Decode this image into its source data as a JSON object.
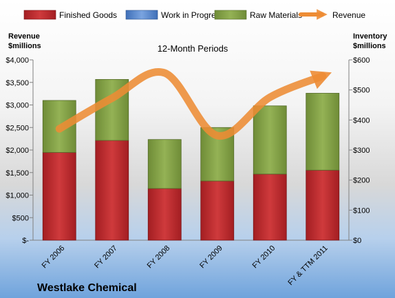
{
  "chart_data": {
    "type": "bar",
    "subtitle": "12-Month Periods",
    "company": "Westlake Chemical",
    "categories": [
      "FY 2006",
      "FY 2007",
      "FY 2008",
      "FY 2009",
      "FY 2010",
      "FY & TTM 2011"
    ],
    "left_axis": {
      "label_line1": "Revenue",
      "label_line2": "$millions",
      "ylim": [
        0,
        4000
      ],
      "ticks": [
        {
          "v": 0,
          "label": "$-"
        },
        {
          "v": 500,
          "label": "$500"
        },
        {
          "v": 1000,
          "label": "$1,000"
        },
        {
          "v": 1500,
          "label": "$1,500"
        },
        {
          "v": 2000,
          "label": "$2,000"
        },
        {
          "v": 2500,
          "label": "$2,500"
        },
        {
          "v": 3000,
          "label": "$3,000"
        },
        {
          "v": 3500,
          "label": "$3,500"
        },
        {
          "v": 4000,
          "label": "$4,000"
        }
      ]
    },
    "right_axis": {
      "label_line1": "Inventory",
      "label_line2": "$millions",
      "ylim": [
        0,
        600
      ],
      "ticks": [
        {
          "v": 0,
          "label": "$0"
        },
        {
          "v": 100,
          "label": "$100"
        },
        {
          "v": 200,
          "label": "$200"
        },
        {
          "v": 300,
          "label": "$300"
        },
        {
          "v": 400,
          "label": "$400"
        },
        {
          "v": 500,
          "label": "$500"
        },
        {
          "v": 600,
          "label": "$600"
        }
      ]
    },
    "series": [
      {
        "name": "Finished Goods",
        "axis": "right",
        "color": "#c0282e",
        "values": [
          292,
          332,
          172,
          197,
          220,
          233
        ]
      },
      {
        "name": "Work in Progress",
        "axis": "right",
        "color": "#5b8bd6",
        "values": [
          0,
          0,
          0,
          0,
          0,
          0
        ]
      },
      {
        "name": "Raw Materials",
        "axis": "right",
        "color": "#8aa94a",
        "values": [
          173,
          203,
          163,
          178,
          227,
          256
        ]
      },
      {
        "name": "Revenue",
        "type": "line",
        "axis": "left",
        "color": "#ed8c34",
        "values": [
          2470,
          3150,
          3710,
          2320,
          3170,
          3640
        ]
      }
    ],
    "legend_position": "top",
    "grid": false
  }
}
